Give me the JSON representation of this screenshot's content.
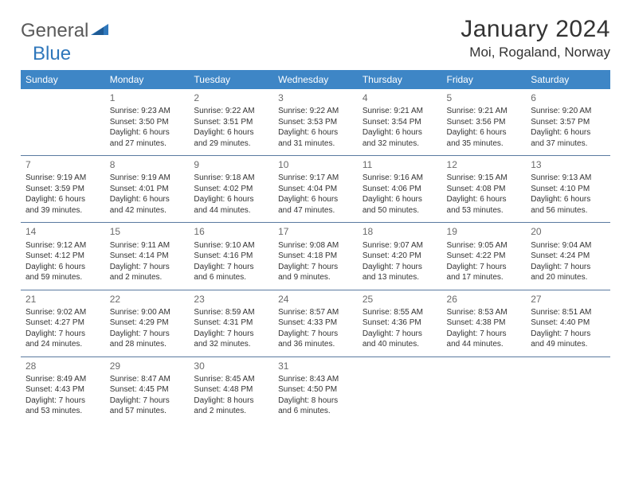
{
  "brand": {
    "part1": "General",
    "part2": "Blue",
    "mark_color": "#2f77bb",
    "text_color": "#5a5a5a"
  },
  "title": "January 2024",
  "location": "Moi, Rogaland, Norway",
  "header_bg": "#3e86c6",
  "header_fg": "#ffffff",
  "rule_color": "#5a7aa0",
  "day_headers": [
    "Sunday",
    "Monday",
    "Tuesday",
    "Wednesday",
    "Thursday",
    "Friday",
    "Saturday"
  ],
  "weeks": [
    [
      null,
      {
        "n": "1",
        "sr": "9:23 AM",
        "ss": "3:50 PM",
        "dl": "6 hours and 27 minutes."
      },
      {
        "n": "2",
        "sr": "9:22 AM",
        "ss": "3:51 PM",
        "dl": "6 hours and 29 minutes."
      },
      {
        "n": "3",
        "sr": "9:22 AM",
        "ss": "3:53 PM",
        "dl": "6 hours and 31 minutes."
      },
      {
        "n": "4",
        "sr": "9:21 AM",
        "ss": "3:54 PM",
        "dl": "6 hours and 32 minutes."
      },
      {
        "n": "5",
        "sr": "9:21 AM",
        "ss": "3:56 PM",
        "dl": "6 hours and 35 minutes."
      },
      {
        "n": "6",
        "sr": "9:20 AM",
        "ss": "3:57 PM",
        "dl": "6 hours and 37 minutes."
      }
    ],
    [
      {
        "n": "7",
        "sr": "9:19 AM",
        "ss": "3:59 PM",
        "dl": "6 hours and 39 minutes."
      },
      {
        "n": "8",
        "sr": "9:19 AM",
        "ss": "4:01 PM",
        "dl": "6 hours and 42 minutes."
      },
      {
        "n": "9",
        "sr": "9:18 AM",
        "ss": "4:02 PM",
        "dl": "6 hours and 44 minutes."
      },
      {
        "n": "10",
        "sr": "9:17 AM",
        "ss": "4:04 PM",
        "dl": "6 hours and 47 minutes."
      },
      {
        "n": "11",
        "sr": "9:16 AM",
        "ss": "4:06 PM",
        "dl": "6 hours and 50 minutes."
      },
      {
        "n": "12",
        "sr": "9:15 AM",
        "ss": "4:08 PM",
        "dl": "6 hours and 53 minutes."
      },
      {
        "n": "13",
        "sr": "9:13 AM",
        "ss": "4:10 PM",
        "dl": "6 hours and 56 minutes."
      }
    ],
    [
      {
        "n": "14",
        "sr": "9:12 AM",
        "ss": "4:12 PM",
        "dl": "6 hours and 59 minutes."
      },
      {
        "n": "15",
        "sr": "9:11 AM",
        "ss": "4:14 PM",
        "dl": "7 hours and 2 minutes."
      },
      {
        "n": "16",
        "sr": "9:10 AM",
        "ss": "4:16 PM",
        "dl": "7 hours and 6 minutes."
      },
      {
        "n": "17",
        "sr": "9:08 AM",
        "ss": "4:18 PM",
        "dl": "7 hours and 9 minutes."
      },
      {
        "n": "18",
        "sr": "9:07 AM",
        "ss": "4:20 PM",
        "dl": "7 hours and 13 minutes."
      },
      {
        "n": "19",
        "sr": "9:05 AM",
        "ss": "4:22 PM",
        "dl": "7 hours and 17 minutes."
      },
      {
        "n": "20",
        "sr": "9:04 AM",
        "ss": "4:24 PM",
        "dl": "7 hours and 20 minutes."
      }
    ],
    [
      {
        "n": "21",
        "sr": "9:02 AM",
        "ss": "4:27 PM",
        "dl": "7 hours and 24 minutes."
      },
      {
        "n": "22",
        "sr": "9:00 AM",
        "ss": "4:29 PM",
        "dl": "7 hours and 28 minutes."
      },
      {
        "n": "23",
        "sr": "8:59 AM",
        "ss": "4:31 PM",
        "dl": "7 hours and 32 minutes."
      },
      {
        "n": "24",
        "sr": "8:57 AM",
        "ss": "4:33 PM",
        "dl": "7 hours and 36 minutes."
      },
      {
        "n": "25",
        "sr": "8:55 AM",
        "ss": "4:36 PM",
        "dl": "7 hours and 40 minutes."
      },
      {
        "n": "26",
        "sr": "8:53 AM",
        "ss": "4:38 PM",
        "dl": "7 hours and 44 minutes."
      },
      {
        "n": "27",
        "sr": "8:51 AM",
        "ss": "4:40 PM",
        "dl": "7 hours and 49 minutes."
      }
    ],
    [
      {
        "n": "28",
        "sr": "8:49 AM",
        "ss": "4:43 PM",
        "dl": "7 hours and 53 minutes."
      },
      {
        "n": "29",
        "sr": "8:47 AM",
        "ss": "4:45 PM",
        "dl": "7 hours and 57 minutes."
      },
      {
        "n": "30",
        "sr": "8:45 AM",
        "ss": "4:48 PM",
        "dl": "8 hours and 2 minutes."
      },
      {
        "n": "31",
        "sr": "8:43 AM",
        "ss": "4:50 PM",
        "dl": "8 hours and 6 minutes."
      },
      null,
      null,
      null
    ]
  ],
  "labels": {
    "sunrise": "Sunrise:",
    "sunset": "Sunset:",
    "daylight": "Daylight:"
  }
}
